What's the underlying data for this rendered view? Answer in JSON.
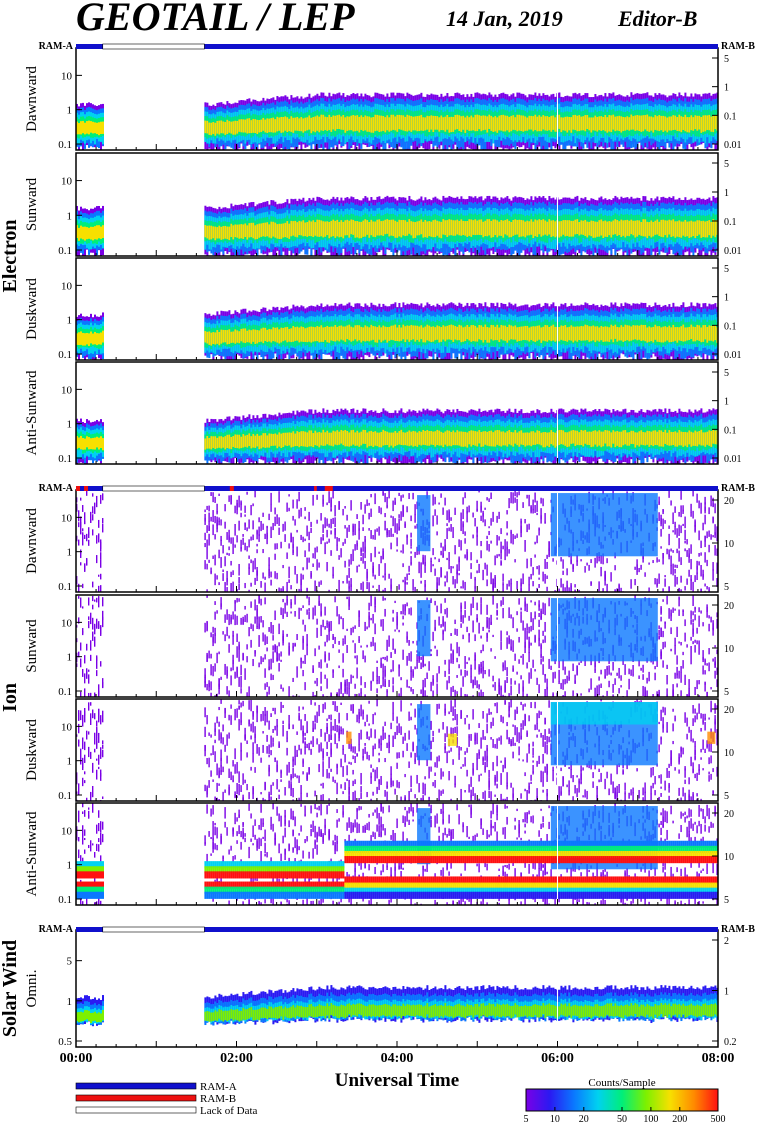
{
  "header": {
    "title": "GEOTAIL / LEP",
    "date": "14 Jan, 2019",
    "editor": "Editor-B"
  },
  "ram_labels": {
    "left": "RAM-A",
    "right": "RAM-B"
  },
  "colors": {
    "ram_a": "#1010cc",
    "ram_b": "#ee1010",
    "lack_of_data": "#ffffff",
    "colormap": [
      "#7a00e6",
      "#2a1af2",
      "#0a78ff",
      "#00d2f0",
      "#00ee7a",
      "#7df000",
      "#f7e000",
      "#ff8a00",
      "#ff1010"
    ]
  },
  "groups": [
    {
      "label": "Electron"
    },
    {
      "label": "Ion"
    },
    {
      "label": "Solar Wind"
    }
  ],
  "chart_data": {
    "type": "heatmap",
    "xlabel": "Universal Time",
    "x_range": [
      "00:00",
      "08:00"
    ],
    "x_ticks": [
      "00:00",
      "02:00",
      "04:00",
      "06:00",
      "08:00"
    ],
    "data_gap": [
      "00:20",
      "01:36"
    ],
    "panels": [
      {
        "id": "e-dawn",
        "group": "Electron",
        "label": "Dawnward",
        "y_ticks": [
          "0.1",
          "1",
          "10"
        ],
        "right_ticks": [
          "5",
          "1",
          "0.1",
          "0.01"
        ],
        "band": "low",
        "band_level": 0.62,
        "ram_bar": "a"
      },
      {
        "id": "e-sun",
        "group": "Electron",
        "label": "Sunward",
        "y_ticks": [
          "0.1",
          "1",
          "10"
        ],
        "right_ticks": [
          "5",
          "1",
          "0.1",
          "0.01"
        ],
        "band": "low",
        "band_level": 0.6,
        "ram_bar": "none"
      },
      {
        "id": "e-dusk",
        "group": "Electron",
        "label": "Duskward",
        "y_ticks": [
          "0.1",
          "1",
          "10"
        ],
        "right_ticks": [
          "5",
          "1",
          "0.1",
          "0.01"
        ],
        "band": "low",
        "band_level": 0.62,
        "ram_bar": "none"
      },
      {
        "id": "e-anti",
        "group": "Electron",
        "label": "Anti-Sunward",
        "y_ticks": [
          "0.1",
          "1",
          "10"
        ],
        "right_ticks": [
          "5",
          "1",
          "0.1",
          "0.01"
        ],
        "band": "low",
        "band_level": 0.64,
        "ram_bar": "none"
      },
      {
        "id": "i-dawn",
        "group": "Ion",
        "label": "Dawnward",
        "y_ticks": [
          "0.1",
          "1",
          "10"
        ],
        "right_ticks": [
          "20",
          "10",
          "5"
        ],
        "band": "noise",
        "band_level": 0,
        "ram_bar": "ion"
      },
      {
        "id": "i-sun",
        "group": "Ion",
        "label": "Sunward",
        "y_ticks": [
          "0.1",
          "1",
          "10"
        ],
        "right_ticks": [
          "20",
          "10",
          "5"
        ],
        "band": "noise",
        "band_level": 0,
        "ram_bar": "none"
      },
      {
        "id": "i-dusk",
        "group": "Ion",
        "label": "Duskward",
        "y_ticks": [
          "0.1",
          "1",
          "10"
        ],
        "right_ticks": [
          "20",
          "10",
          "5"
        ],
        "band": "noise",
        "band_level": 0,
        "ram_bar": "none"
      },
      {
        "id": "i-anti",
        "group": "Ion",
        "label": "Anti-Sunward",
        "y_ticks": [
          "0.1",
          "1",
          "10"
        ],
        "right_ticks": [
          "20",
          "10",
          "5"
        ],
        "band": "ion-beam",
        "band_level": 0.72,
        "ram_bar": "none"
      },
      {
        "id": "sw-omni",
        "group": "Solar Wind",
        "label": "Omni.",
        "y_ticks": [
          "0.5",
          "1",
          "5"
        ],
        "right_ticks": [
          "2",
          "1",
          "0.2"
        ],
        "band": "sw",
        "band_level": 0.65,
        "ram_bar": "a"
      }
    ],
    "colorbar": {
      "title": "Counts/Sample",
      "ticks": [
        "5",
        "10",
        "20",
        "50",
        "100",
        "200",
        "500"
      ],
      "scale": "log",
      "range": [
        5,
        500
      ]
    },
    "legend": [
      {
        "key": "ram_a",
        "label": "RAM-A"
      },
      {
        "key": "ram_b",
        "label": "RAM-B"
      },
      {
        "key": "lack_of_data",
        "label": "Lack of Data"
      }
    ]
  }
}
